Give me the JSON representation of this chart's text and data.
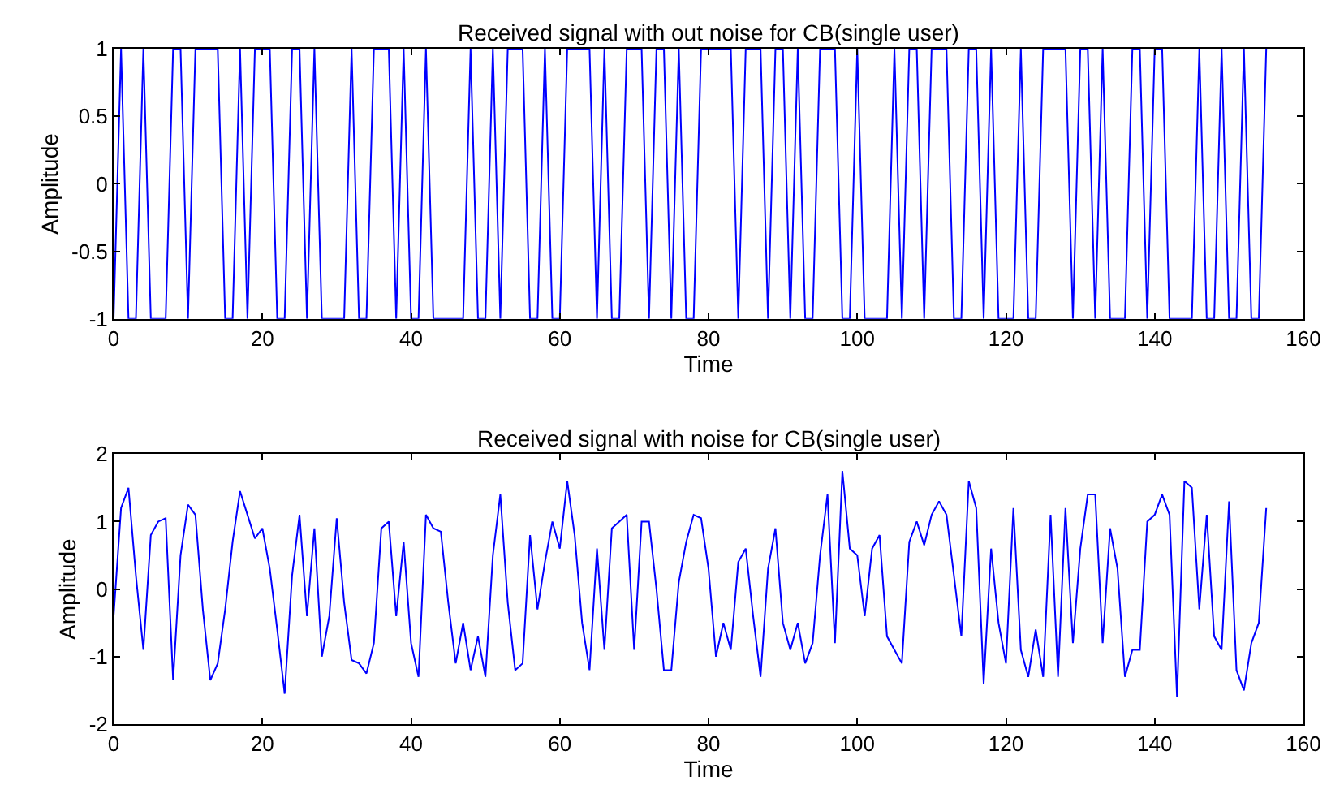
{
  "chart_data": [
    {
      "type": "line",
      "title": "Received signal with out noise for CB(single user)",
      "xlabel": "Time",
      "ylabel": "Amplitude",
      "xlim": [
        0,
        160
      ],
      "xticks": [
        0,
        20,
        40,
        60,
        80,
        100,
        120,
        140,
        160
      ],
      "ylim": [
        -1,
        1
      ],
      "yticks": [
        -1,
        -0.5,
        0,
        0.5,
        1
      ],
      "series": [
        {
          "color": "#0000ff",
          "x": [
            0,
            1,
            2,
            3,
            4,
            5,
            6,
            7,
            8,
            9,
            10,
            11,
            12,
            13,
            14,
            15,
            16,
            17,
            18,
            19,
            20,
            21,
            22,
            23,
            24,
            25,
            26,
            27,
            28,
            29,
            30,
            31,
            32,
            33,
            34,
            35,
            36,
            37,
            38,
            39,
            40,
            41,
            42,
            43,
            44,
            45,
            46,
            47,
            48,
            49,
            50,
            51,
            52,
            53,
            54,
            55,
            56,
            57,
            58,
            59,
            60,
            61,
            62,
            63,
            64,
            65,
            66,
            67,
            68,
            69,
            70,
            71,
            72,
            73,
            74,
            75,
            76,
            77,
            78,
            79,
            80,
            81,
            82,
            83,
            84,
            85,
            86,
            87,
            88,
            89,
            90,
            91,
            92,
            93,
            94,
            95,
            96,
            97,
            98,
            99,
            100,
            101,
            102,
            103,
            104,
            105,
            106,
            107,
            108,
            109,
            110,
            111,
            112,
            113,
            114,
            115,
            116,
            117,
            118,
            119,
            120,
            121,
            122,
            123,
            124,
            125,
            126,
            127,
            128,
            129,
            130,
            131,
            132,
            133,
            134,
            135,
            136,
            137,
            138,
            139,
            140,
            141,
            142,
            143,
            144,
            145,
            146,
            147,
            148,
            149,
            150,
            151,
            152,
            153,
            154,
            155
          ],
          "values": [
            -1,
            1,
            -1,
            -1,
            1,
            -1,
            -1,
            -1,
            1,
            1,
            -1,
            1,
            1,
            1,
            1,
            -1,
            -1,
            1,
            -1,
            1,
            1,
            1,
            -1,
            -1,
            1,
            1,
            -1,
            1,
            -1,
            -1,
            -1,
            -1,
            1,
            -1,
            -1,
            1,
            1,
            1,
            -1,
            1,
            -1,
            -1,
            1,
            -1,
            -1,
            -1,
            -1,
            -1,
            1,
            -1,
            -1,
            1,
            -1,
            1,
            1,
            1,
            -1,
            -1,
            1,
            -1,
            -1,
            1,
            1,
            1,
            1,
            -1,
            1,
            -1,
            -1,
            1,
            1,
            1,
            -1,
            1,
            1,
            -1,
            1,
            -1,
            -1,
            1,
            1,
            1,
            1,
            1,
            -1,
            1,
            1,
            1,
            -1,
            1,
            1,
            -1,
            1,
            -1,
            -1,
            1,
            1,
            1,
            -1,
            -1,
            1,
            -1,
            -1,
            -1,
            -1,
            1,
            -1,
            1,
            1,
            -1,
            1,
            1,
            1,
            -1,
            -1,
            1,
            1,
            -1,
            1,
            -1,
            -1,
            -1,
            1,
            -1,
            -1,
            1,
            1,
            1,
            1,
            -1,
            1,
            1,
            -1,
            1,
            -1,
            -1,
            -1,
            1,
            1,
            -1,
            1,
            1,
            -1,
            -1,
            -1,
            -1,
            1,
            -1,
            -1,
            1,
            -1,
            -1,
            1,
            -1,
            -1,
            1
          ]
        }
      ]
    },
    {
      "type": "line",
      "title": "Received signal with noise for CB(single user)",
      "xlabel": "Time",
      "ylabel": "Amplitude",
      "xlim": [
        0,
        160
      ],
      "xticks": [
        0,
        20,
        40,
        60,
        80,
        100,
        120,
        140,
        160
      ],
      "ylim": [
        -2,
        2
      ],
      "yticks": [
        -2,
        -1,
        0,
        1,
        2
      ],
      "series": [
        {
          "color": "#0000ff",
          "x": [
            0,
            1,
            2,
            3,
            4,
            5,
            6,
            7,
            8,
            9,
            10,
            11,
            12,
            13,
            14,
            15,
            16,
            17,
            18,
            19,
            20,
            21,
            22,
            23,
            24,
            25,
            26,
            27,
            28,
            29,
            30,
            31,
            32,
            33,
            34,
            35,
            36,
            37,
            38,
            39,
            40,
            41,
            42,
            43,
            44,
            45,
            46,
            47,
            48,
            49,
            50,
            51,
            52,
            53,
            54,
            55,
            56,
            57,
            58,
            59,
            60,
            61,
            62,
            63,
            64,
            65,
            66,
            67,
            68,
            69,
            70,
            71,
            72,
            73,
            74,
            75,
            76,
            77,
            78,
            79,
            80,
            81,
            82,
            83,
            84,
            85,
            86,
            87,
            88,
            89,
            90,
            91,
            92,
            93,
            94,
            95,
            96,
            97,
            98,
            99,
            100,
            101,
            102,
            103,
            104,
            105,
            106,
            107,
            108,
            109,
            110,
            111,
            112,
            113,
            114,
            115,
            116,
            117,
            118,
            119,
            120,
            121,
            122,
            123,
            124,
            125,
            126,
            127,
            128,
            129,
            130,
            131,
            132,
            133,
            134,
            135,
            136,
            137,
            138,
            139,
            140,
            141,
            142,
            143,
            144,
            145,
            146,
            147,
            148,
            149,
            150,
            151,
            152,
            153,
            154,
            155
          ],
          "values": [
            -0.4,
            1.2,
            1.5,
            0.2,
            -0.9,
            0.8,
            1.0,
            1.05,
            -1.35,
            0.5,
            1.25,
            1.1,
            -0.3,
            -1.35,
            -1.1,
            -0.3,
            0.7,
            1.45,
            1.1,
            0.75,
            0.9,
            0.3,
            -0.6,
            -1.55,
            0.2,
            1.1,
            -0.4,
            0.9,
            -1.0,
            -0.4,
            1.05,
            -0.2,
            -1.05,
            -1.1,
            -1.25,
            -0.8,
            0.9,
            1.0,
            -0.4,
            0.7,
            -0.8,
            -1.3,
            1.1,
            0.9,
            0.85,
            -0.2,
            -1.1,
            -0.5,
            -1.2,
            -0.7,
            -1.3,
            0.5,
            1.4,
            -0.2,
            -1.2,
            -1.1,
            0.8,
            -0.3,
            0.4,
            1.0,
            0.6,
            1.6,
            0.8,
            -0.5,
            -1.2,
            0.6,
            -0.9,
            0.9,
            1.0,
            1.1,
            -0.9,
            1.0,
            1.0,
            0.0,
            -1.2,
            -1.2,
            0.1,
            0.7,
            1.1,
            1.05,
            0.3,
            -1.0,
            -0.5,
            -0.9,
            0.4,
            0.6,
            -0.4,
            -1.3,
            0.3,
            0.9,
            -0.5,
            -0.9,
            -0.5,
            -1.1,
            -0.8,
            0.5,
            1.4,
            -0.8,
            1.75,
            0.6,
            0.5,
            -0.4,
            0.6,
            0.8,
            -0.7,
            -0.9,
            -1.1,
            0.7,
            1.0,
            0.65,
            1.1,
            1.3,
            1.1,
            0.2,
            -0.7,
            1.6,
            1.2,
            -1.4,
            0.6,
            -0.5,
            -1.1,
            1.2,
            -0.9,
            -1.3,
            -0.6,
            -1.3,
            1.1,
            -1.3,
            1.2,
            -0.8,
            0.6,
            1.4,
            1.4,
            -0.8,
            0.9,
            0.3,
            -1.3,
            -0.9,
            -0.9,
            1.0,
            1.1,
            1.4,
            1.1,
            -1.6,
            1.6,
            1.5,
            -0.3,
            1.1,
            -0.7,
            -0.9,
            1.3,
            -1.2,
            -1.5,
            -0.8,
            -0.5,
            1.2
          ]
        }
      ]
    }
  ]
}
